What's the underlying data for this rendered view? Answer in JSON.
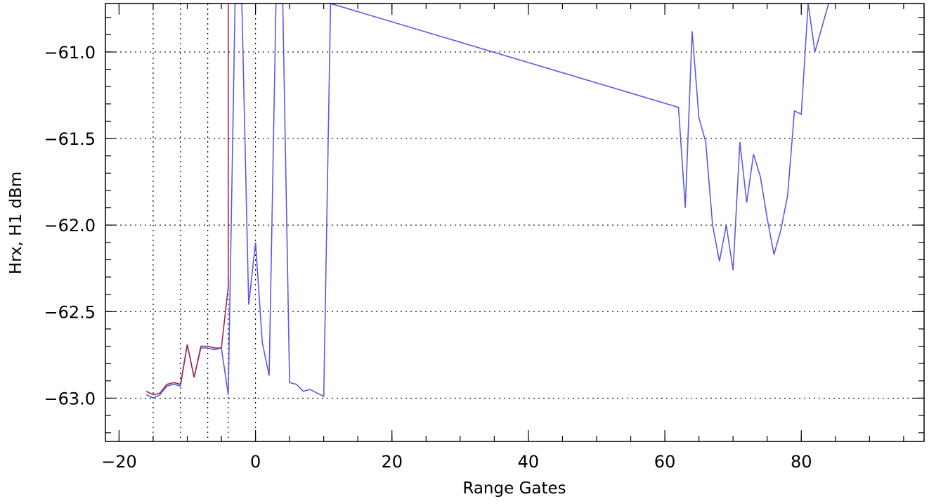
{
  "chart_data": {
    "type": "line",
    "title": "",
    "xlabel": "Range Gates",
    "ylabel": "Hrx, H1 dBm",
    "xlim": [
      -22,
      98
    ],
    "ylim": [
      -63.25,
      -60.72
    ],
    "xticks": [
      -20,
      0,
      20,
      40,
      60,
      80
    ],
    "xtick_labels": [
      "−20",
      "0",
      "20",
      "40",
      "60",
      "80"
    ],
    "yticks": [
      -63.0,
      -62.5,
      -62.0,
      -61.5,
      -61.0
    ],
    "ytick_labels": [
      "−63.0",
      "−62.5",
      "−62.0",
      "−61.5",
      "−61.0"
    ],
    "x_minor_step": 5,
    "y_minor_step": 0.1,
    "grid": {
      "horizontal_dotted_at": [
        -63.0,
        -62.5,
        -62.0,
        -61.5,
        -61.0
      ],
      "vertical_dotted_at": [
        -15,
        -11,
        -7,
        -4,
        0
      ]
    },
    "series": [
      {
        "color": "#5a5ae6",
        "x": [
          -16,
          -15,
          -14,
          -13,
          -12,
          -11,
          -10,
          -9,
          -8,
          -7,
          -6,
          -5,
          -4,
          -3,
          -2,
          -1,
          0,
          1,
          2,
          3,
          4,
          5,
          6,
          7,
          8,
          9,
          10,
          11,
          62,
          63,
          64,
          65,
          66,
          67,
          68,
          69,
          70,
          71,
          72,
          73,
          74,
          75,
          76,
          77,
          78,
          79,
          80,
          81,
          82,
          83,
          84
        ],
        "y": [
          -62.98,
          -63.0,
          -62.98,
          -62.93,
          -62.92,
          -62.93,
          -62.69,
          -62.88,
          -62.71,
          -62.71,
          -62.72,
          -62.71,
          -62.98,
          -60.5,
          -60.5,
          -62.46,
          -62.1,
          -62.68,
          -62.87,
          -60.5,
          -60.5,
          -62.91,
          -62.92,
          -62.96,
          -62.95,
          -62.97,
          -62.99,
          -60.5,
          -61.32,
          -61.9,
          -60.88,
          -61.38,
          -61.52,
          -62.0,
          -62.21,
          -62.0,
          -62.26,
          -61.52,
          -61.87,
          -61.59,
          -61.72,
          -61.96,
          -62.17,
          -62.03,
          -61.83,
          -61.34,
          -61.36,
          -60.72,
          -61.0,
          -60.86,
          -60.5
        ]
      },
      {
        "color": "#9e2a4e",
        "x": [
          -16,
          -15,
          -14,
          -13,
          -12,
          -11,
          -10,
          -9,
          -8,
          -7,
          -6,
          -5,
          -4,
          -4
        ],
        "y": [
          -62.96,
          -62.98,
          -62.97,
          -62.92,
          -62.91,
          -62.92,
          -62.69,
          -62.88,
          -62.7,
          -62.7,
          -62.71,
          -62.71,
          -62.36,
          -60.5
        ]
      }
    ]
  }
}
